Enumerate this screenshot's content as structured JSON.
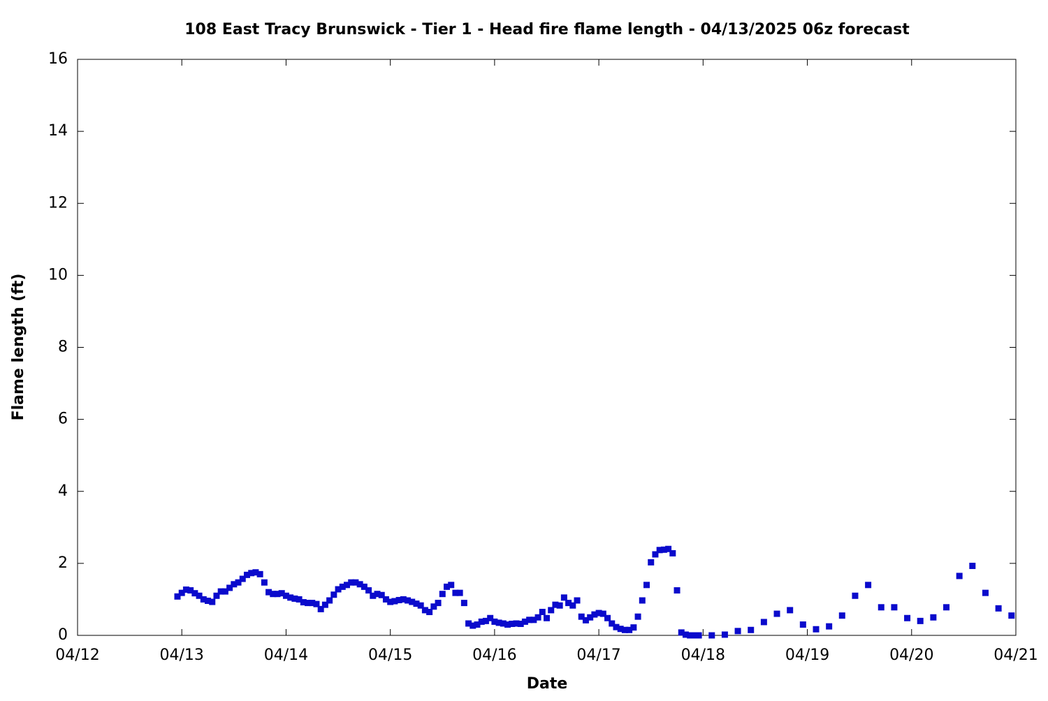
{
  "chart_data": {
    "type": "scatter",
    "title": "108 East Tracy Brunswick - Tier 1 - Head fire flame length - 04/13/2025 06z forecast",
    "xlabel": "Date",
    "ylabel": "Flame length (ft)",
    "color": "#0a0acc",
    "xlim": [
      0,
      216
    ],
    "xticks": [
      {
        "value": 0,
        "label": "04/12"
      },
      {
        "value": 24,
        "label": "04/13"
      },
      {
        "value": 48,
        "label": "04/14"
      },
      {
        "value": 72,
        "label": "04/15"
      },
      {
        "value": 96,
        "label": "04/16"
      },
      {
        "value": 120,
        "label": "04/17"
      },
      {
        "value": 144,
        "label": "04/18"
      },
      {
        "value": 168,
        "label": "04/19"
      },
      {
        "value": 192,
        "label": "04/20"
      },
      {
        "value": 216,
        "label": "04/21"
      }
    ],
    "ylim": [
      0,
      16
    ],
    "yticks": [
      0,
      2,
      4,
      6,
      8,
      10,
      12,
      14,
      16
    ],
    "x": [
      23,
      24,
      25,
      26,
      27,
      28,
      29,
      30,
      31,
      32,
      33,
      34,
      35,
      36,
      37,
      38,
      39,
      40,
      41,
      42,
      43,
      44,
      45,
      46,
      47,
      48,
      49,
      50,
      51,
      52,
      53,
      54,
      55,
      56,
      57,
      58,
      59,
      60,
      61,
      62,
      63,
      64,
      65,
      66,
      67,
      68,
      69,
      70,
      71,
      72,
      73,
      74,
      75,
      76,
      77,
      78,
      79,
      80,
      81,
      82,
      83,
      84,
      85,
      86,
      87,
      88,
      89,
      90,
      91,
      92,
      93,
      94,
      95,
      96,
      97,
      98,
      99,
      100,
      101,
      102,
      103,
      104,
      105,
      106,
      107,
      108,
      109,
      110,
      111,
      112,
      113,
      114,
      115,
      116,
      117,
      118,
      119,
      120,
      121,
      122,
      123,
      124,
      125,
      126,
      127,
      128,
      129,
      130,
      131,
      132,
      133,
      134,
      135,
      136,
      137,
      138,
      139,
      140,
      141,
      142,
      143,
      146,
      149,
      152,
      155,
      158,
      161,
      164,
      167,
      170,
      173,
      176,
      179,
      182,
      185,
      188,
      191,
      194,
      197,
      200,
      203,
      206,
      209,
      212,
      215
    ],
    "values": [
      1.08,
      1.18,
      1.27,
      1.25,
      1.17,
      1.1,
      1.0,
      0.96,
      0.93,
      1.1,
      1.22,
      1.22,
      1.32,
      1.42,
      1.47,
      1.57,
      1.68,
      1.73,
      1.75,
      1.7,
      1.47,
      1.2,
      1.15,
      1.15,
      1.17,
      1.1,
      1.05,
      1.02,
      1.0,
      0.92,
      0.9,
      0.9,
      0.87,
      0.73,
      0.85,
      0.97,
      1.13,
      1.28,
      1.35,
      1.4,
      1.47,
      1.47,
      1.42,
      1.35,
      1.25,
      1.1,
      1.15,
      1.12,
      1.0,
      0.93,
      0.95,
      0.98,
      1.0,
      0.97,
      0.93,
      0.88,
      0.83,
      0.7,
      0.65,
      0.8,
      0.9,
      1.15,
      1.35,
      1.4,
      1.18,
      1.18,
      0.9,
      0.33,
      0.27,
      0.3,
      0.38,
      0.4,
      0.48,
      0.38,
      0.35,
      0.33,
      0.3,
      0.32,
      0.33,
      0.32,
      0.38,
      0.43,
      0.43,
      0.5,
      0.65,
      0.48,
      0.7,
      0.85,
      0.83,
      1.05,
      0.9,
      0.83,
      0.97,
      0.52,
      0.42,
      0.5,
      0.58,
      0.62,
      0.6,
      0.48,
      0.33,
      0.23,
      0.18,
      0.15,
      0.15,
      0.22,
      0.52,
      0.97,
      1.4,
      2.03,
      2.25,
      2.37,
      2.38,
      2.4,
      2.28,
      1.25,
      0.08,
      0.02,
      0.0,
      0.0,
      0.0,
      0.0,
      0.02,
      0.12,
      0.15,
      0.37,
      0.6,
      0.7,
      0.3,
      0.17,
      0.25,
      0.55,
      1.1,
      1.4,
      0.78,
      0.78,
      0.48,
      0.4,
      0.5,
      0.78,
      1.65,
      1.93,
      1.18,
      0.75,
      0.55
    ]
  }
}
